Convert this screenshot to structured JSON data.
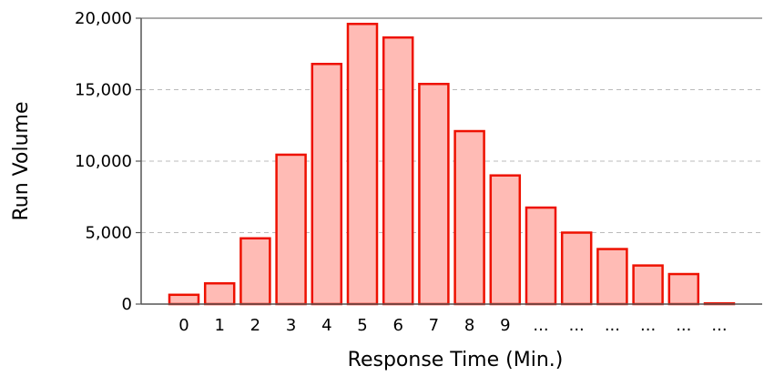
{
  "chart_data": {
    "type": "bar",
    "title": "",
    "xlabel": "Response Time (Min.)",
    "ylabel": "Run Volume",
    "categories": [
      "0",
      "1",
      "2",
      "3",
      "4",
      "5",
      "6",
      "7",
      "8",
      "9",
      "...",
      "...",
      "...",
      "...",
      "...",
      "..."
    ],
    "values": [
      650,
      1450,
      4600,
      10450,
      16800,
      19600,
      18650,
      15400,
      12100,
      9000,
      6750,
      5000,
      3850,
      2700,
      2100,
      50
    ],
    "ylim": [
      0,
      20000
    ],
    "yticks": [
      0,
      5000,
      10000,
      15000,
      20000
    ],
    "ytick_labels": [
      "0",
      "5,000",
      "10,000",
      "15,000",
      "20,000"
    ],
    "grid": "horizontal dashed",
    "colors": {
      "bar_fill": "#ffbbb5",
      "bar_edge": "#ee1100",
      "grid": "#bbbbbb",
      "axis": "#555555"
    }
  }
}
